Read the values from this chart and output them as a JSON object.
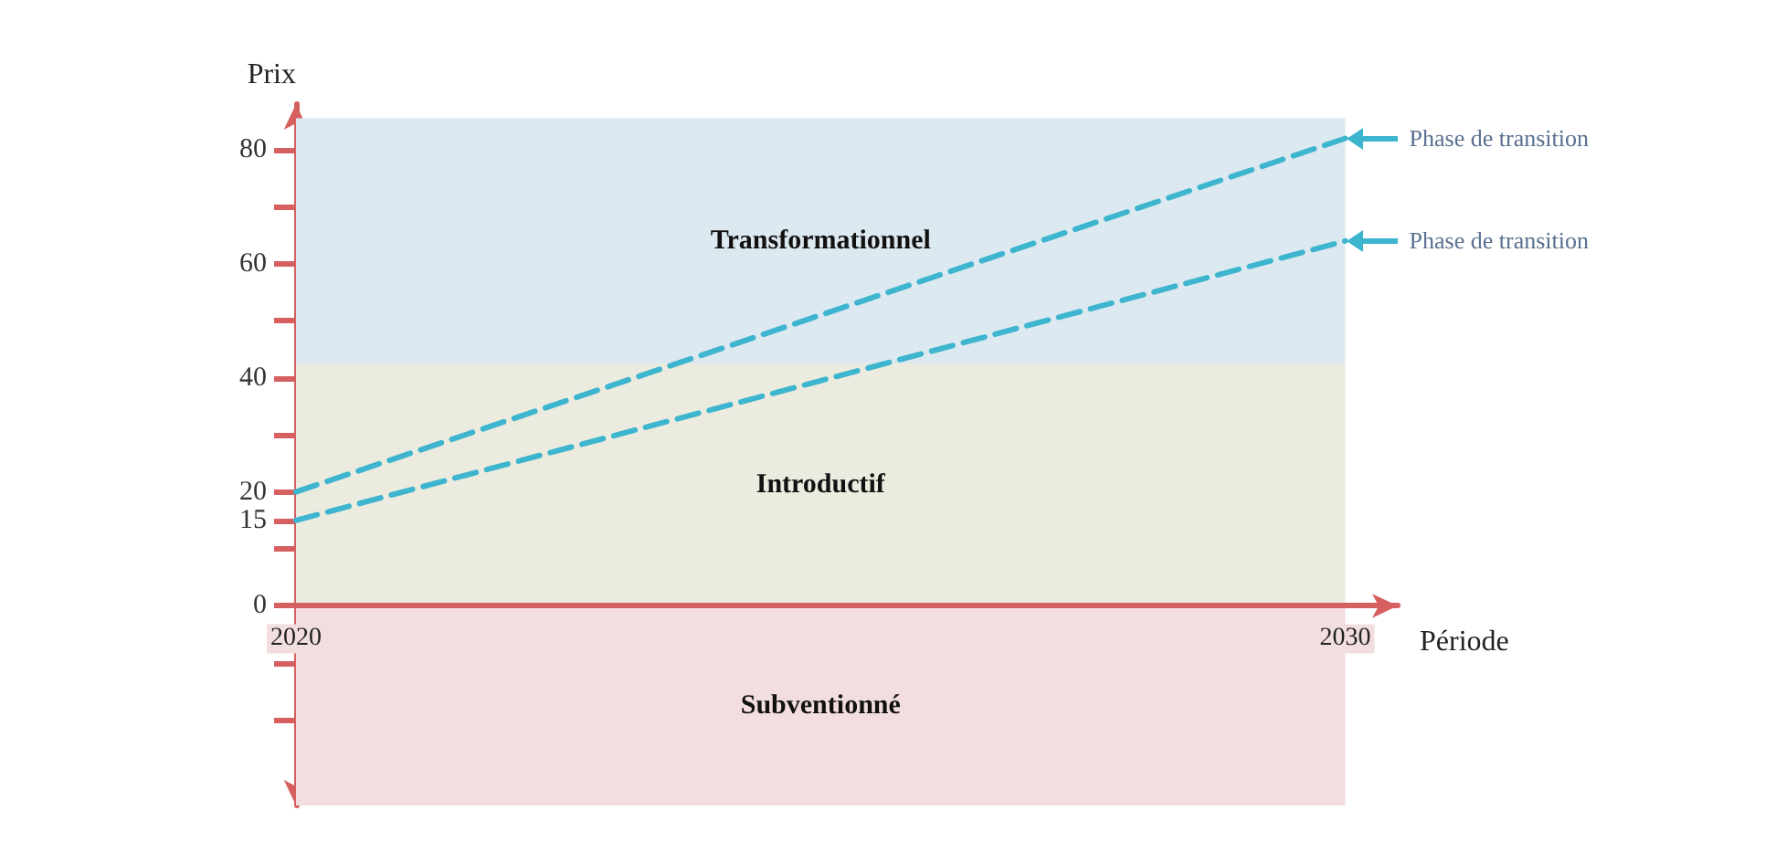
{
  "chart_data": {
    "type": "line",
    "xlabel": "Période",
    "ylabel": "Prix",
    "x": [
      2020,
      2030
    ],
    "series": [
      {
        "color": "#3db5cf",
        "values": [
          20,
          82
        ]
      },
      {
        "color": "#3db5cf",
        "values": [
          15,
          64
        ]
      }
    ],
    "xlim": [
      2020,
      2030.5
    ],
    "xticks": [
      2020,
      2030
    ],
    "ylim": [
      -35,
      88
    ],
    "yticks": [
      {
        "value": -20,
        "label": null
      },
      {
        "value": -10,
        "label": null
      },
      0,
      {
        "value": 10,
        "label": null
      },
      15,
      20,
      {
        "value": 30,
        "label": null
      },
      40,
      {
        "value": 50,
        "label": null
      },
      60,
      {
        "value": 70,
        "label": null
      },
      80
    ],
    "bands": [
      {
        "axis": "y",
        "from": -35,
        "to": 0,
        "label": "Subventionné",
        "color": "#f2dede"
      },
      {
        "axis": "y",
        "from": 0,
        "to": 42.5,
        "label": "Introductif",
        "color": "#ebebdf"
      },
      {
        "axis": "y",
        "from": 42.5,
        "to": 85.5,
        "label": "Transformationnel",
        "color": "#dde9f0"
      }
    ],
    "annotations": [
      {
        "text": "Phase de transition",
        "x": 2030,
        "y": 82
      },
      {
        "text": "Phase de transition",
        "x": 2030,
        "y": 64
      }
    ],
    "line_style": "dashed",
    "marker": "none",
    "grid": false
  }
}
